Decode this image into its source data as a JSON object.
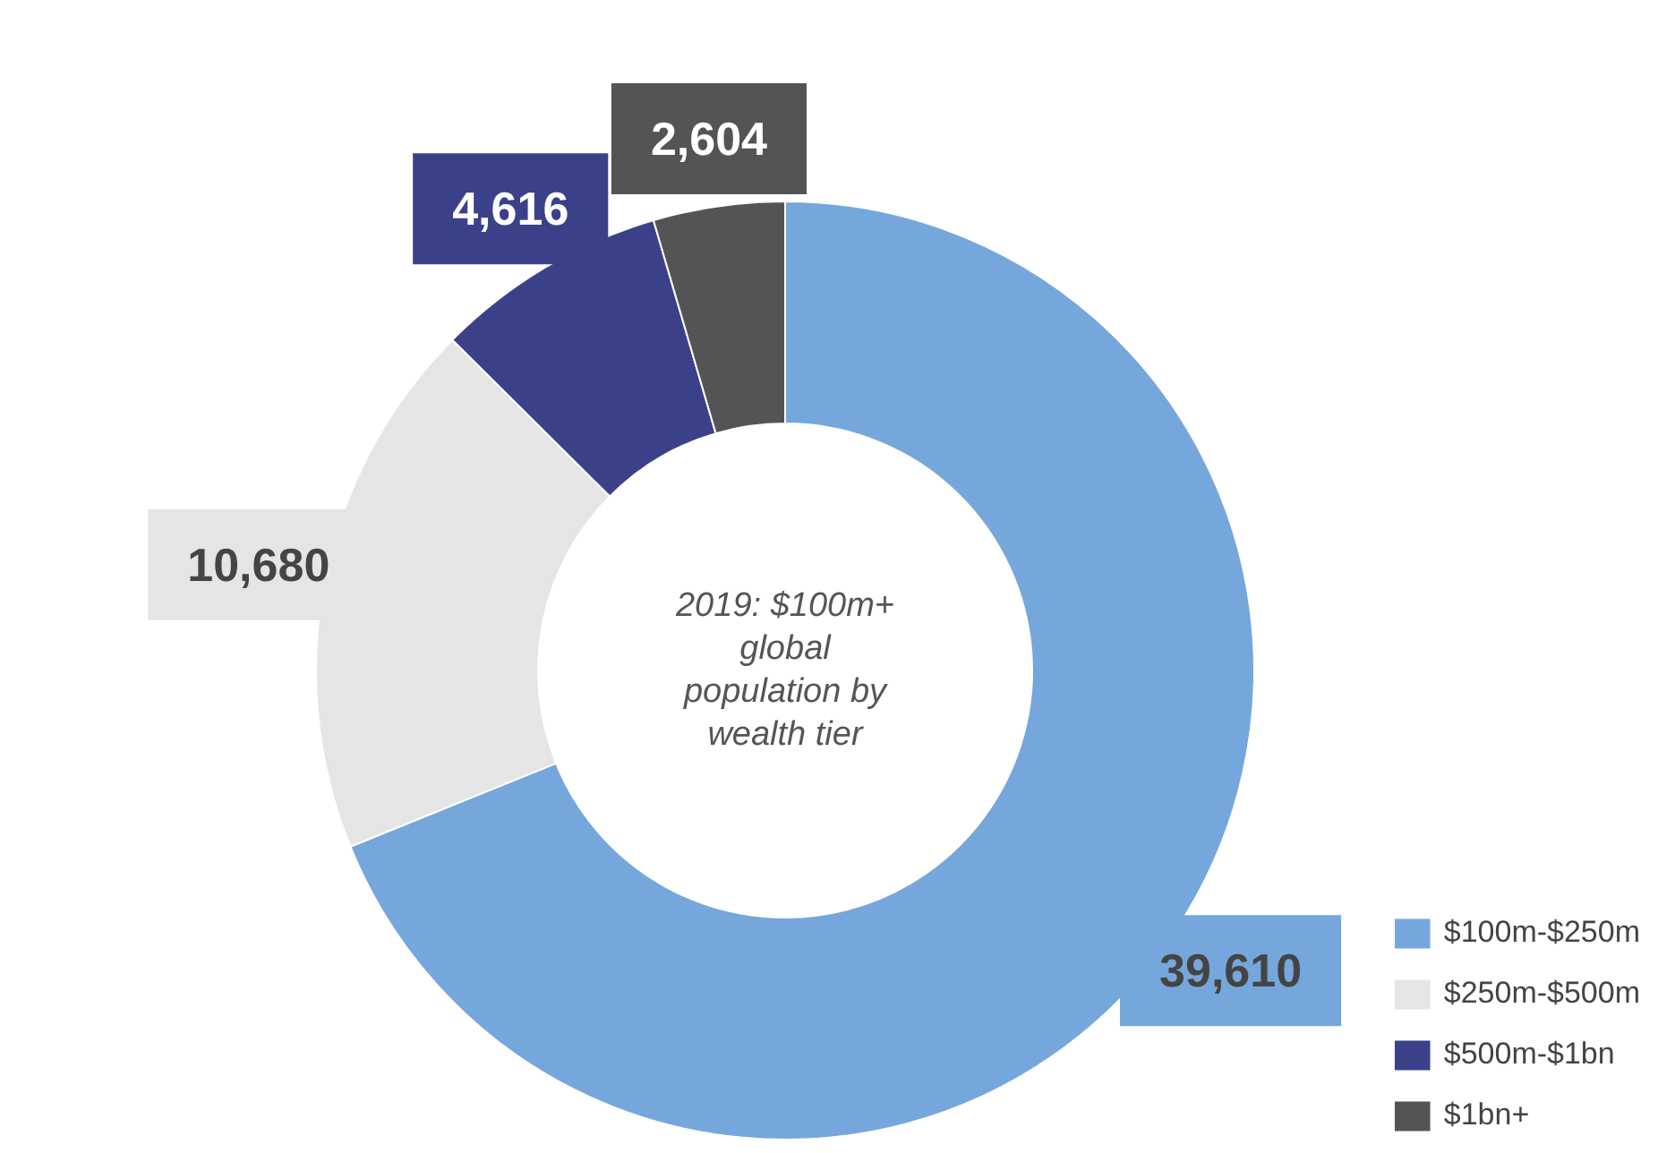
{
  "chart_data": {
    "type": "donut",
    "title": "2019: $100m+ global population by wealth tier",
    "categories": [
      "$100m-$250m",
      "$250m-$500m",
      "$500m-$1bn",
      "$1bn+"
    ],
    "values": [
      39610,
      10680,
      4616,
      2604
    ],
    "colors": [
      "#75a7dc",
      "#e5e5e5",
      "#3b4189",
      "#545454"
    ],
    "value_labels": [
      "39,610",
      "10,680",
      "4,616",
      "2,604"
    ],
    "legend": "bottom right"
  }
}
